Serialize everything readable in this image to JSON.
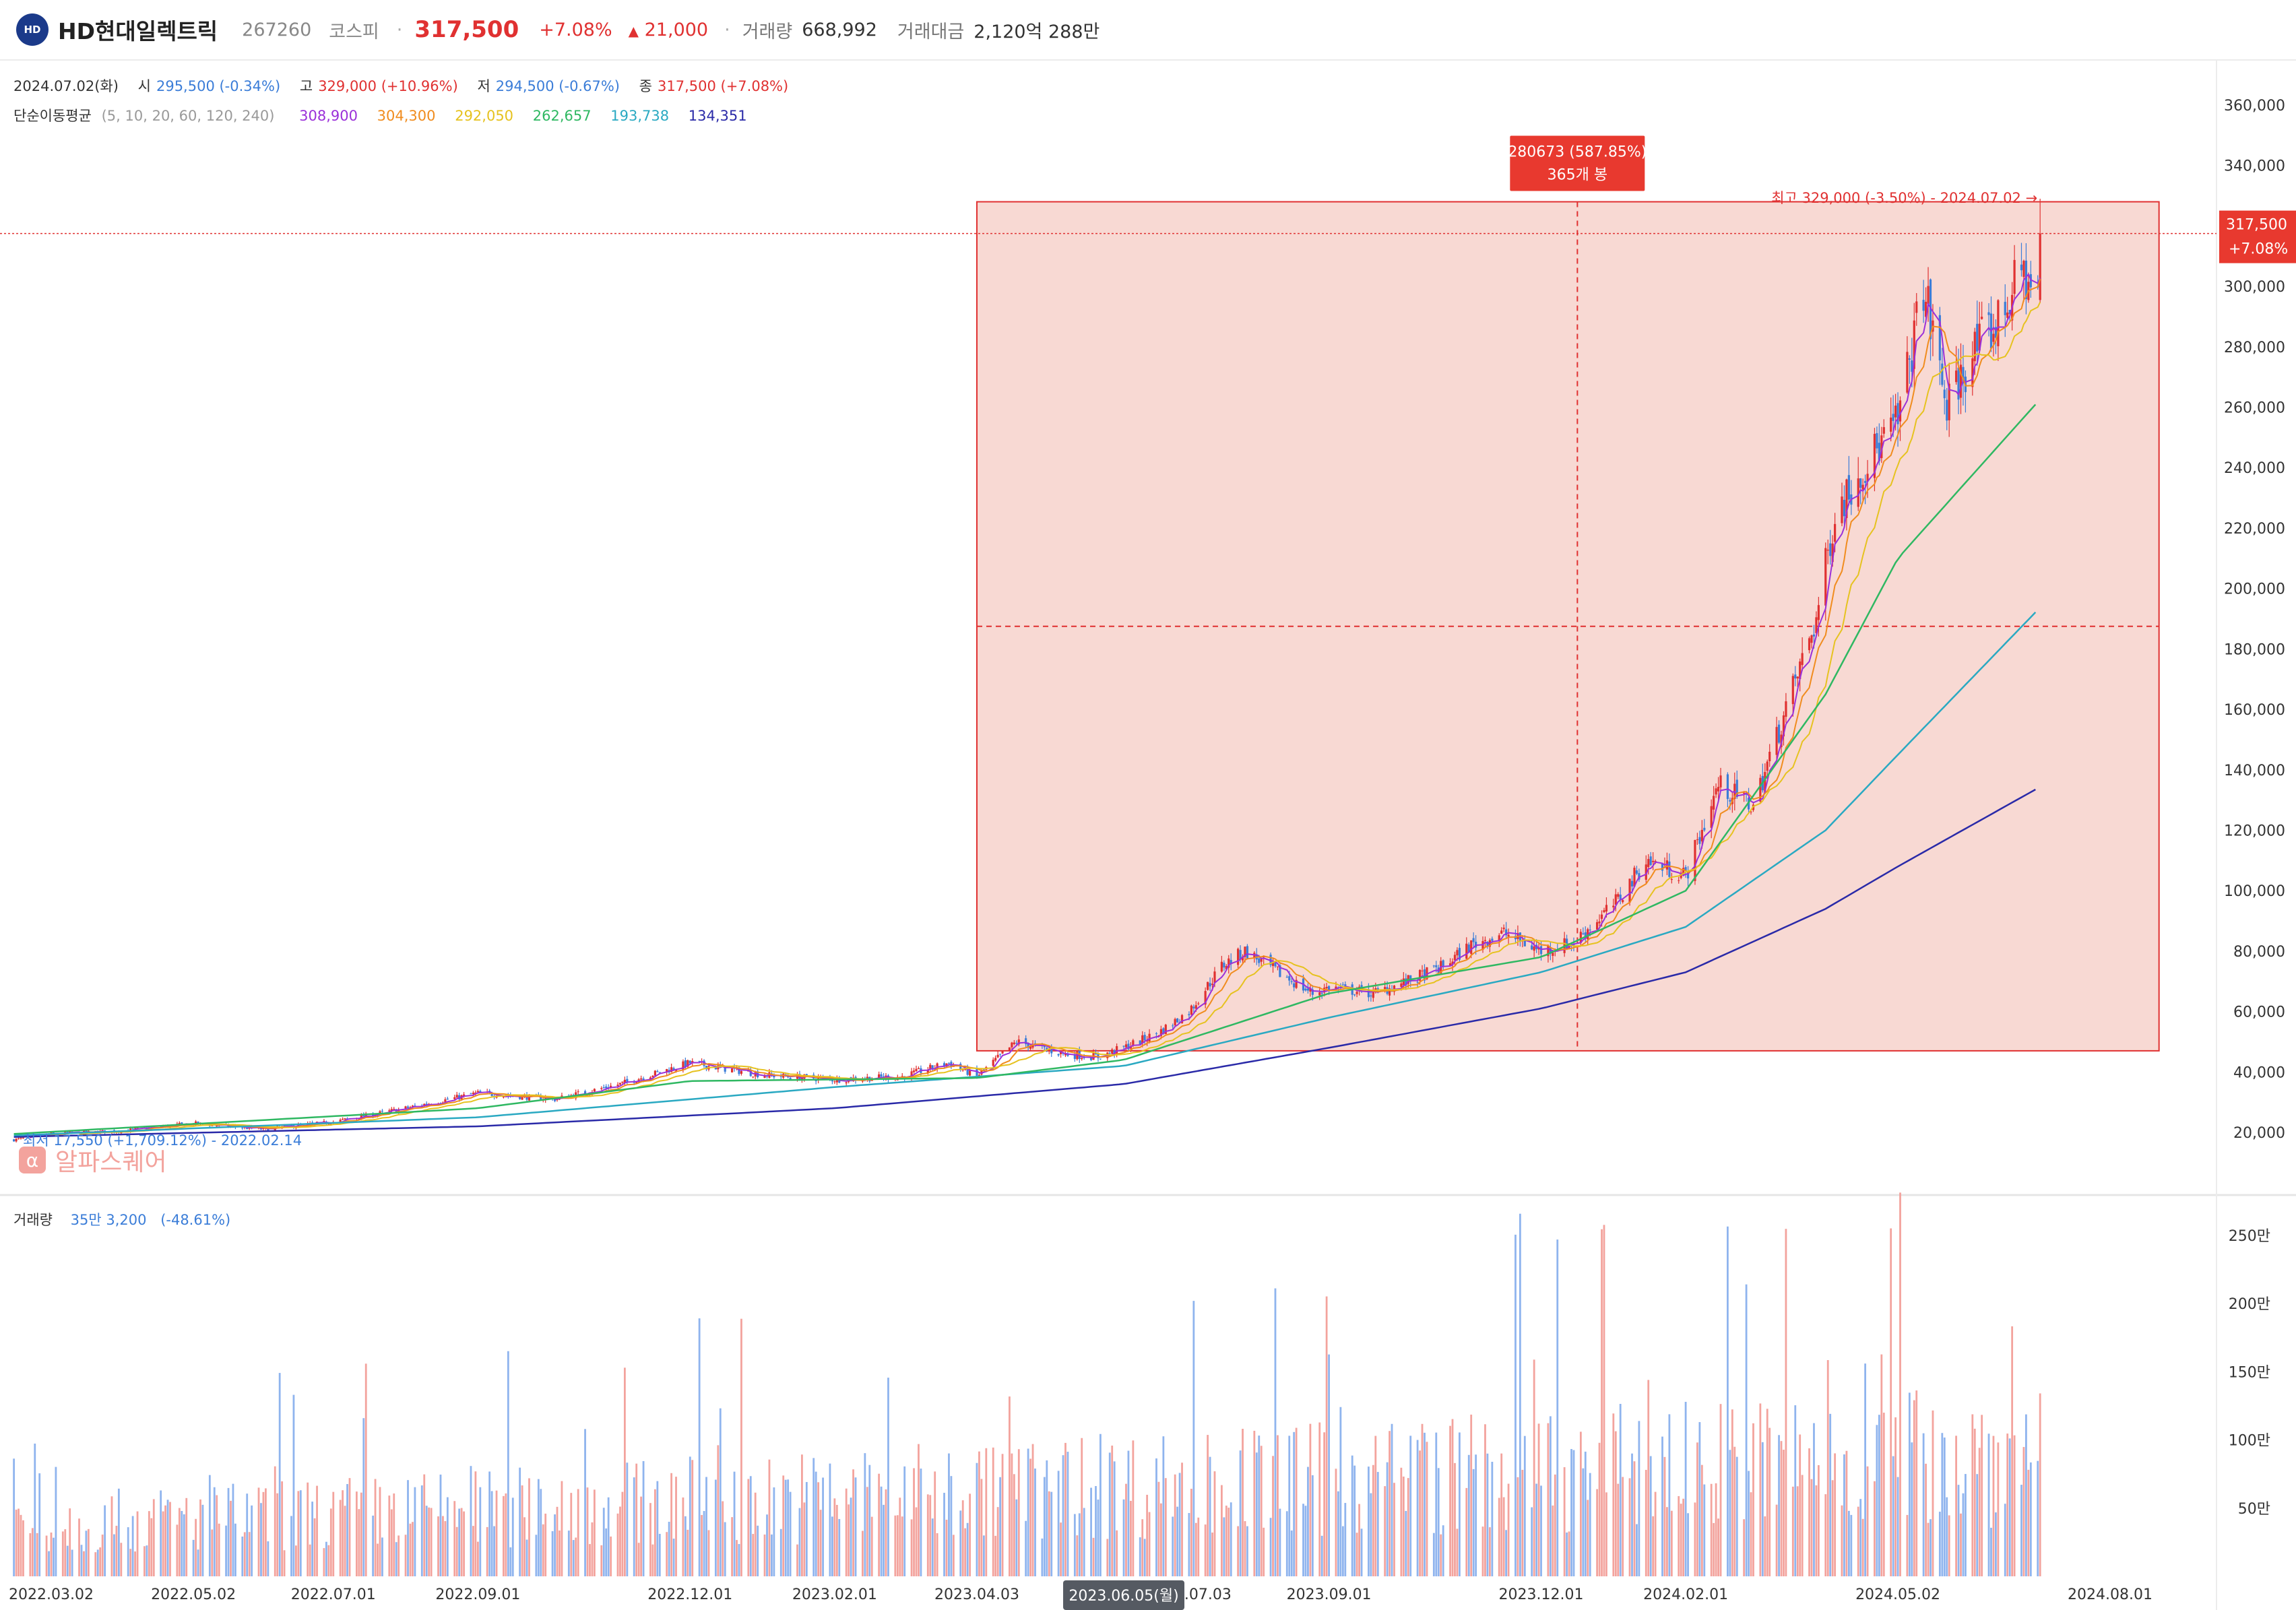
{
  "header": {
    "name": "HD현대일렉트릭",
    "code": "267260",
    "market": "코스피",
    "price": "317,500",
    "change_pct": "+7.08%",
    "change_abs": "21,000",
    "volume_label": "거래량",
    "volume": "668,992",
    "amount_label": "거래대금",
    "amount": "2,120억 288만",
    "logo_text": "HD"
  },
  "ohlc": {
    "date": "2024.07.02(화)",
    "open_label": "시",
    "open": "295,500 (-0.34%)",
    "high_label": "고",
    "high": "329,000 (+10.96%)",
    "low_label": "저",
    "low": "294,500 (-0.67%)",
    "close_label": "종",
    "close": "317,500 (+7.08%)"
  },
  "ma": {
    "label": "단순이동평균",
    "periods": "(5, 10, 20, 60, 120, 240)",
    "values": [
      "308,900",
      "304,300",
      "292,050",
      "262,657",
      "193,738",
      "134,351"
    ],
    "colors": [
      "#9b30d9",
      "#f08c1e",
      "#e6c21f",
      "#2fb862",
      "#2aa9c2",
      "#2a2aa8"
    ]
  },
  "volume_info": {
    "label": "거래량",
    "value": "35만 3,200",
    "change": "(-48.61%)"
  },
  "watermark": {
    "text": "알파스퀘어",
    "logo": "α"
  },
  "annotations": {
    "measure_top": "280673 (587.85%)",
    "measure_bottom": "365개 봉",
    "high_note": "최고 329,000 (-3.50%) - 2024.07.02 →",
    "low_note": "최저 17,550 (+1,709.12%) - 2022.02.14",
    "price_tag": "317,500",
    "price_tag_pct": "+7.08%",
    "crosshair_date": "2023.06.05(월)"
  },
  "colors": {
    "up": "#e03131",
    "down": "#3b7dd8",
    "box_fill": "#f6cfc8",
    "box_stroke": "#e03131"
  },
  "chart_data": {
    "type": "candlestick",
    "x_ticks": [
      "2022.03.02",
      "2022.05.02",
      "2022.07.01",
      "2022.09.01",
      "2022.12.01",
      "2023.02.01",
      "2023.04.03",
      "2023.07.03",
      "2023.09.01",
      "2023.12.01",
      "2024.02.01",
      "2024.05.02",
      "2024.08.01"
    ],
    "y_ticks": [
      "20,000",
      "40,000",
      "60,000",
      "80,000",
      "100,000",
      "120,000",
      "140,000",
      "160,000",
      "180,000",
      "200,000",
      "220,000",
      "240,000",
      "260,000",
      "280,000",
      "300,000",
      "320,000",
      "340,000",
      "360,000"
    ],
    "vol_ticks": [
      "50만",
      "100만",
      "150만",
      "200만",
      "250만"
    ],
    "ylim": [
      0,
      370000
    ],
    "vol_max": 2750000,
    "close_series": [
      [
        "2022-02-14",
        17550
      ],
      [
        "2022-03-02",
        19500
      ],
      [
        "2022-04-01",
        20500
      ],
      [
        "2022-05-02",
        23000
      ],
      [
        "2022-06-01",
        21000
      ],
      [
        "2022-07-01",
        23500
      ],
      [
        "2022-08-01",
        28000
      ],
      [
        "2022-09-01",
        33000
      ],
      [
        "2022-10-04",
        31000
      ],
      [
        "2022-11-01",
        36000
      ],
      [
        "2022-12-01",
        43000
      ],
      [
        "2023-01-02",
        39000
      ],
      [
        "2023-02-01",
        37500
      ],
      [
        "2023-03-02",
        38500
      ],
      [
        "2023-03-22",
        43000
      ],
      [
        "2023-04-03",
        38500
      ],
      [
        "2023-04-20",
        50000
      ],
      [
        "2023-05-10",
        46000
      ],
      [
        "2023-05-25",
        45000
      ],
      [
        "2023-06-05",
        48000
      ],
      [
        "2023-06-20",
        53000
      ],
      [
        "2023-07-03",
        60000
      ],
      [
        "2023-07-17",
        75000
      ],
      [
        "2023-07-27",
        80000
      ],
      [
        "2023-08-10",
        73000
      ],
      [
        "2023-08-25",
        66000
      ],
      [
        "2023-09-01",
        68000
      ],
      [
        "2023-09-20",
        66000
      ],
      [
        "2023-10-05",
        70000
      ],
      [
        "2023-10-20",
        75000
      ],
      [
        "2023-11-01",
        82000
      ],
      [
        "2023-11-15",
        86000
      ],
      [
        "2023-12-01",
        80000
      ],
      [
        "2023-12-15",
        83000
      ],
      [
        "2024-01-02",
        96000
      ],
      [
        "2024-01-15",
        110000
      ],
      [
        "2024-02-01",
        105000
      ],
      [
        "2024-02-15",
        135000
      ],
      [
        "2024-03-01",
        128000
      ],
      [
        "2024-03-15",
        160000
      ],
      [
        "2024-03-28",
        190000
      ],
      [
        "2024-04-05",
        225000
      ],
      [
        "2024-04-15",
        238000
      ],
      [
        "2024-04-25",
        248000
      ],
      [
        "2024-05-02",
        255000
      ],
      [
        "2024-05-13",
        300000
      ],
      [
        "2024-05-23",
        260000
      ],
      [
        "2024-06-03",
        278000
      ],
      [
        "2024-06-14",
        288000
      ],
      [
        "2024-06-24",
        305000
      ],
      [
        "2024-07-01",
        296500
      ],
      [
        "2024-07-02",
        317500
      ]
    ],
    "ma_series": [
      {
        "name": "240",
        "values": [
          [
            "2022-02-14",
            18500
          ],
          [
            "2022-09-01",
            22000
          ],
          [
            "2023-02-01",
            28000
          ],
          [
            "2023-06-05",
            36000
          ],
          [
            "2023-09-01",
            48000
          ],
          [
            "2023-12-01",
            61000
          ],
          [
            "2024-02-01",
            73000
          ],
          [
            "2024-04-01",
            94000
          ],
          [
            "2024-05-02",
            108000
          ],
          [
            "2024-07-02",
            134351
          ]
        ]
      },
      {
        "name": "120",
        "values": [
          [
            "2022-02-14",
            19000
          ],
          [
            "2022-09-01",
            25000
          ],
          [
            "2023-02-01",
            35000
          ],
          [
            "2023-06-05",
            42000
          ],
          [
            "2023-09-01",
            58000
          ],
          [
            "2023-12-01",
            73000
          ],
          [
            "2024-02-01",
            88000
          ],
          [
            "2024-04-01",
            120000
          ],
          [
            "2024-05-02",
            145000
          ],
          [
            "2024-07-02",
            193738
          ]
        ]
      },
      {
        "name": "60",
        "values": [
          [
            "2022-02-14",
            19500
          ],
          [
            "2022-09-01",
            28000
          ],
          [
            "2022-12-01",
            37000
          ],
          [
            "2023-04-03",
            38000
          ],
          [
            "2023-06-05",
            44000
          ],
          [
            "2023-09-01",
            66000
          ],
          [
            "2023-12-01",
            78000
          ],
          [
            "2024-02-01",
            100000
          ],
          [
            "2024-04-01",
            165000
          ],
          [
            "2024-05-02",
            210000
          ],
          [
            "2024-07-02",
            262657
          ]
        ]
      }
    ],
    "measure_box": {
      "x_start": "2023-04-03",
      "x_end": "2024-08-22",
      "y_low": 47000,
      "y_high": 328000
    }
  }
}
